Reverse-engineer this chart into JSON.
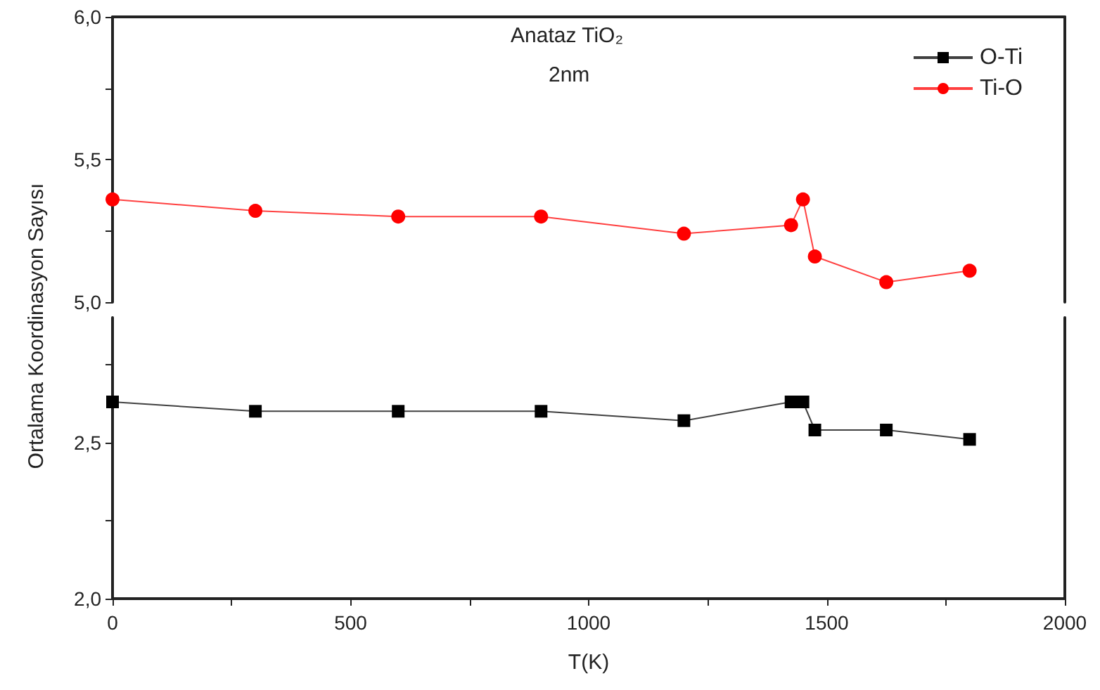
{
  "chart_data": [
    {
      "type": "line",
      "title": "Anataz TiO₂",
      "subtitle": "2nm",
      "x": [
        0,
        300,
        600,
        900,
        1200,
        1425,
        1450,
        1475,
        1625,
        1800
      ],
      "series": [
        {
          "name": "Ti-O",
          "color": "#ff0000",
          "marker": "circle",
          "values": [
            5.36,
            5.32,
            5.3,
            5.3,
            5.24,
            5.27,
            5.36,
            5.16,
            5.07,
            5.11
          ]
        }
      ],
      "xlim": [
        0,
        2000
      ],
      "ylim": [
        5.0,
        6.0
      ],
      "yticks": [
        {
          "value": 5,
          "label": "5,0"
        },
        {
          "value": 5.25,
          "label": null
        },
        {
          "value": 5.5,
          "label": "5,5"
        },
        {
          "value": 5.75,
          "label": null
        },
        {
          "value": 6,
          "label": "6,0"
        }
      ],
      "tick_labels": "y",
      "legend": "top right",
      "grid": false
    },
    {
      "type": "line",
      "xlabel": "T(K)",
      "ylabel": "Ortalama Koordinasyon Sayısı",
      "x": [
        0,
        300,
        600,
        900,
        1200,
        1425,
        1450,
        1475,
        1625,
        1800
      ],
      "series": [
        {
          "name": "O-Ti",
          "color": "#000000",
          "marker": "square",
          "values": [
            2.63,
            2.6,
            2.6,
            2.6,
            2.57,
            2.63,
            2.63,
            2.54,
            2.54,
            2.51
          ]
        }
      ],
      "xlim": [
        0,
        2000
      ],
      "ylim": [
        2.0,
        2.9
      ],
      "xticks": [
        0,
        {
          "value": 250,
          "label": null
        },
        500,
        {
          "value": 750,
          "label": null
        },
        1000,
        {
          "value": 1250,
          "label": null
        },
        1500,
        {
          "value": 1750,
          "label": null
        },
        2000
      ],
      "yticks": [
        {
          "value": 2,
          "label": "2,0"
        },
        {
          "value": 2.25,
          "label": null
        },
        {
          "value": 2.5,
          "label": "2,5"
        },
        {
          "value": 2.75,
          "label": null
        }
      ],
      "legend": "top right",
      "grid": false
    }
  ]
}
